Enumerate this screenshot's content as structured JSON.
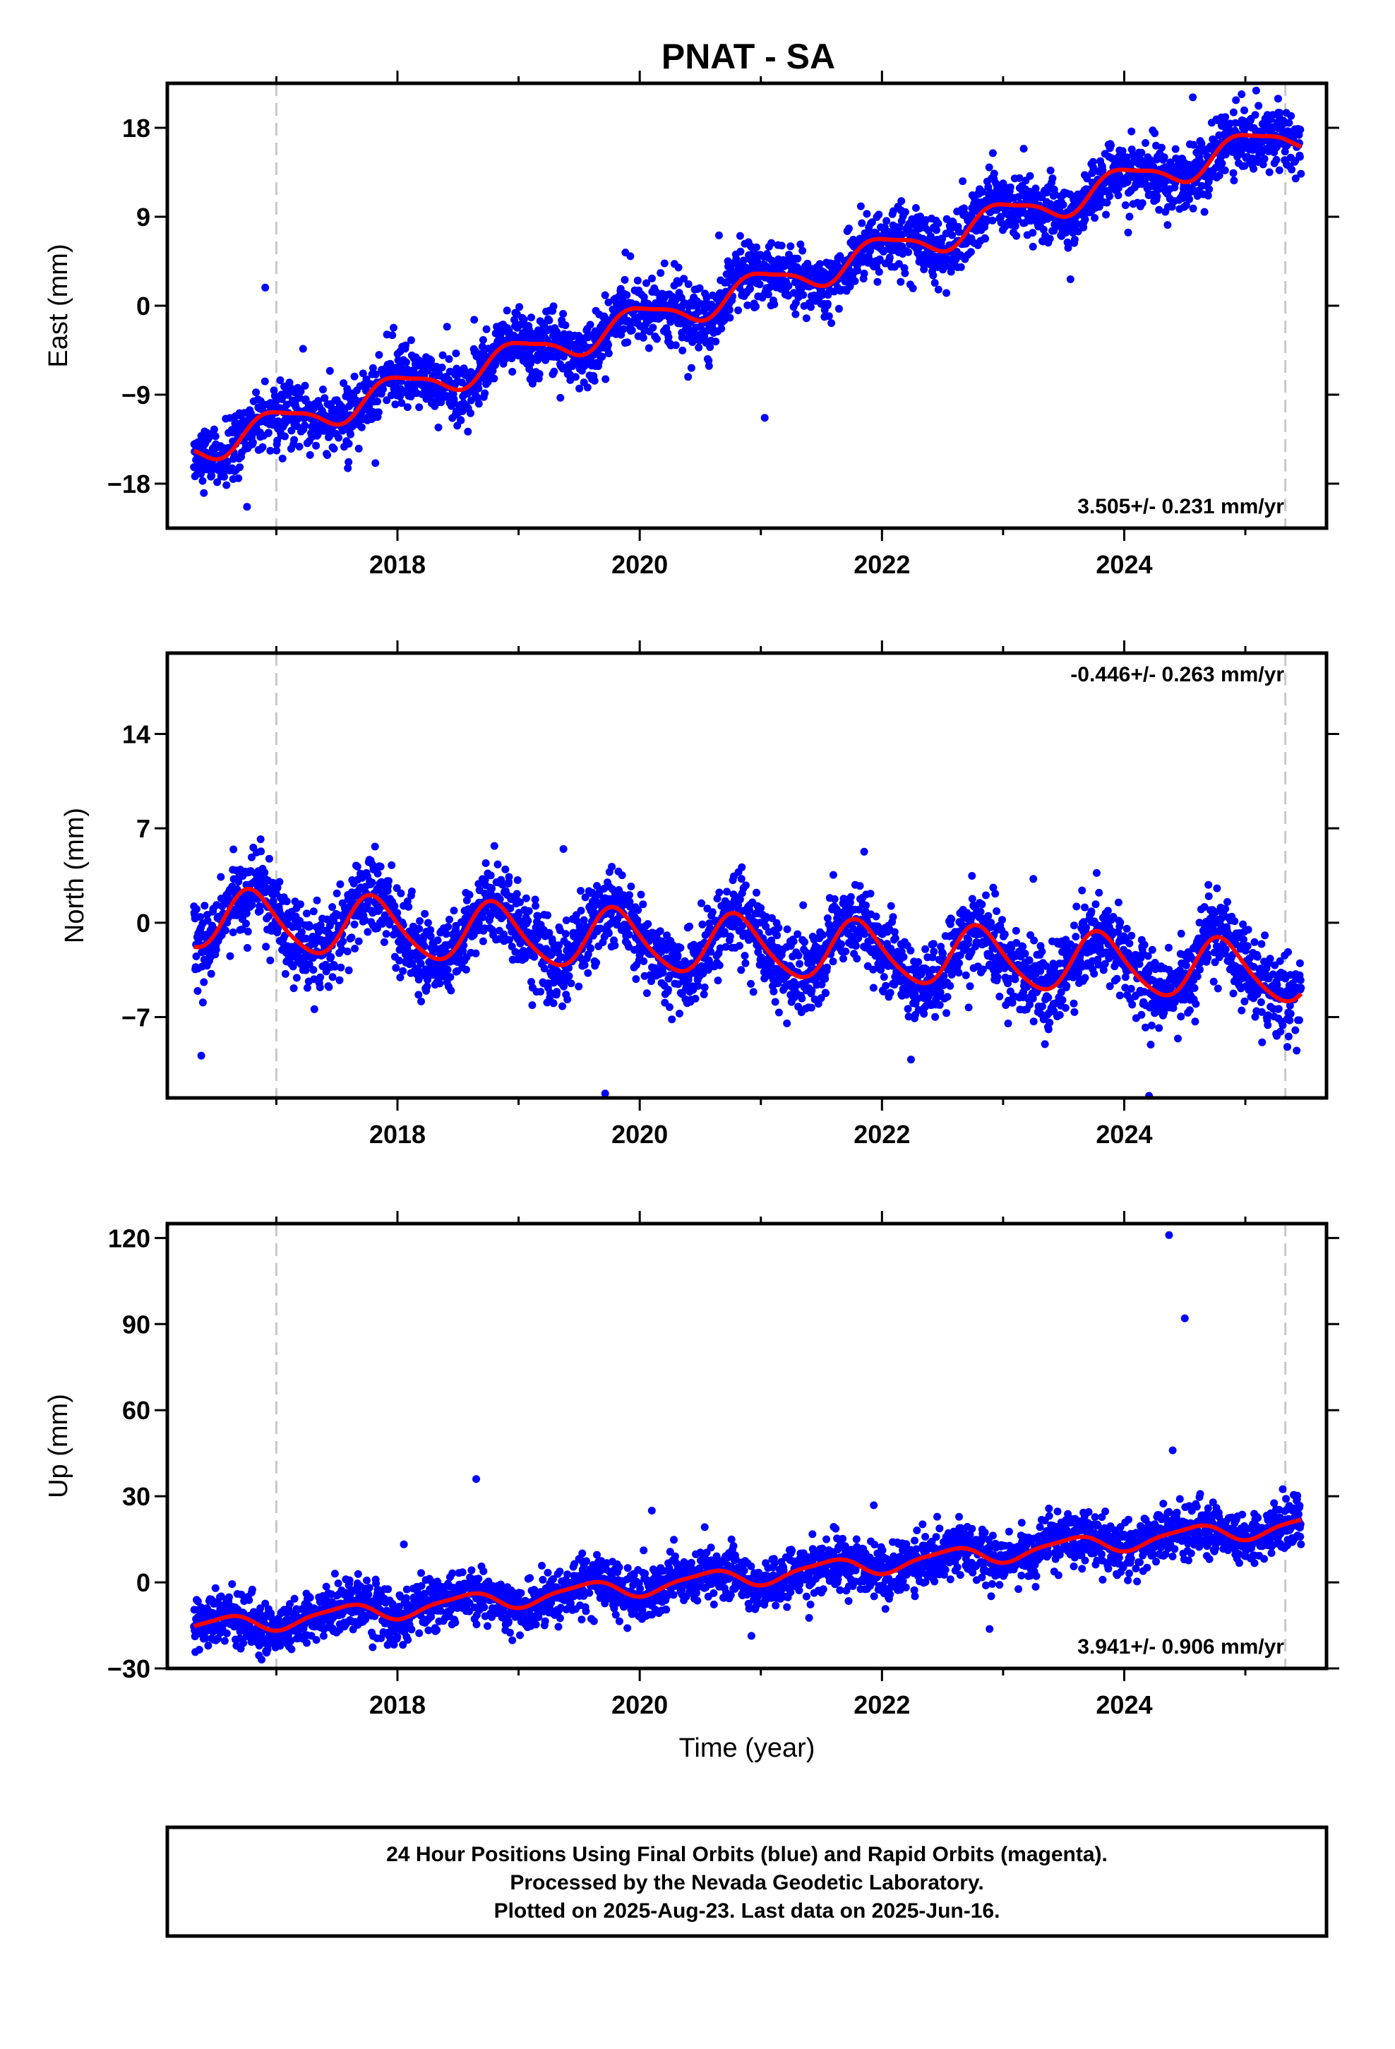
{
  "title": "PNAT - SA",
  "footer": {
    "lines": [
      "24 Hour Positions Using Final Orbits (blue) and Rapid Orbits (magenta).",
      "Processed by the Nevada Geodetic Laboratory.",
      "Plotted on 2025-Aug-23. Last data on 2025-Jun-16."
    ]
  },
  "colors": {
    "final_orbits": "#0000ff",
    "fit_line": "#ff0000",
    "marker_line": "#c8c8c8",
    "frame": "#000000"
  },
  "chart_data": [
    {
      "type": "scatter",
      "ylabel": "East (mm)",
      "xlabel": "",
      "rate_label": "3.505+/- 0.231 mm/yr",
      "xlim": [
        2016.1,
        2025.67
      ],
      "ylim": [
        -22.5,
        22.5
      ],
      "x_ticks": [
        2018,
        2020,
        2022,
        2024
      ],
      "y_ticks": [
        -18,
        -9,
        0,
        9,
        18
      ],
      "y_tick_labels": [
        "−18",
        "−9",
        "0",
        "9",
        "18"
      ],
      "marker_years": [
        2017.0,
        2025.33
      ],
      "trend": {
        "slope": 3.505,
        "intercept": -14.5,
        "t0": 2016.3
      },
      "seasonal": {
        "annual_amp": 1.5,
        "phase": 0.75,
        "semi_amp": 0.4,
        "semi_phase": 0.2
      },
      "noise": 1.6,
      "series": [
        {
          "label": "Final Orbits",
          "color": "#0000ff",
          "start": 2016.32,
          "end": 2025.46
        }
      ]
    },
    {
      "type": "scatter",
      "ylabel": "North (mm)",
      "xlabel": "",
      "rate_label": "-0.446+/- 0.263 mm/yr",
      "xlim": [
        2016.1,
        2025.67
      ],
      "ylim": [
        -13,
        20
      ],
      "x_ticks": [
        2018,
        2020,
        2022,
        2024
      ],
      "y_ticks": [
        -7,
        0,
        7,
        14
      ],
      "y_tick_labels": [
        "−7",
        "0",
        "7",
        "14"
      ],
      "marker_years": [
        2017.0,
        2025.33
      ],
      "trend": {
        "slope": -0.446,
        "intercept": 0.3,
        "t0": 2016.3
      },
      "seasonal": {
        "annual_amp": 2.2,
        "phase": 0.55,
        "semi_amp": 0.3,
        "semi_phase": 0.1
      },
      "noise": 1.5,
      "series": [
        {
          "label": "Final Orbits",
          "color": "#0000ff",
          "start": 2016.32,
          "end": 2025.46
        }
      ]
    },
    {
      "type": "scatter",
      "ylabel": "Up (mm)",
      "xlabel": "Time (year)",
      "rate_label": "3.941+/- 0.906 mm/yr",
      "xlim": [
        2016.1,
        2025.67
      ],
      "ylim": [
        -30,
        125
      ],
      "x_ticks": [
        2018,
        2020,
        2022,
        2024
      ],
      "y_ticks": [
        -30,
        0,
        30,
        60,
        90,
        120
      ],
      "y_tick_labels": [
        "−30",
        "0",
        "30",
        "60",
        "90",
        "120"
      ],
      "marker_years": [
        2017.0,
        2025.33
      ],
      "trend": {
        "slope": 3.941,
        "intercept": -16.0,
        "t0": 2016.3
      },
      "seasonal": {
        "annual_amp": 3.0,
        "phase": 0.3,
        "semi_amp": 0.8,
        "semi_phase": 0.6
      },
      "noise": 4.5,
      "outliers": [
        [
          2018.65,
          36
        ],
        [
          2020.1,
          25
        ],
        [
          2024.37,
          121
        ],
        [
          2024.5,
          92
        ],
        [
          2024.4,
          46
        ]
      ],
      "series": [
        {
          "label": "Final Orbits",
          "color": "#0000ff",
          "start": 2016.32,
          "end": 2025.46
        }
      ]
    }
  ]
}
